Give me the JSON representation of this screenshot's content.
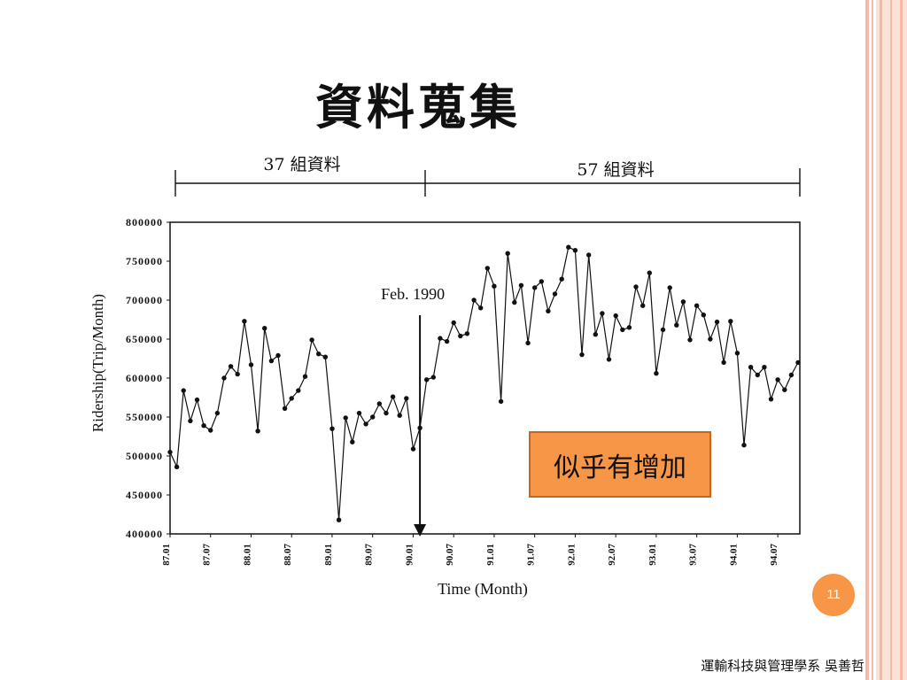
{
  "slide": {
    "title": "資料蒐集",
    "segments": [
      {
        "label": "37 組資料"
      },
      {
        "label": "57 組資料"
      }
    ],
    "callout": "似乎有增加",
    "page_number": "11",
    "footer": "運輸科技與管理學系 吳善哲",
    "colors": {
      "accent": "#f79646",
      "stripe": "#f5b9a5",
      "stripe_light": "#fbe2d7"
    }
  },
  "chart_data": {
    "type": "line",
    "title": "",
    "xlabel": "Time (Month)",
    "ylabel": "Ridership(Trip/Month)",
    "ylim": [
      400000,
      800000
    ],
    "y_ticks": [
      800000,
      750000,
      700000,
      650000,
      600000,
      550000,
      500000,
      450000,
      400000
    ],
    "x_ticks": [
      "87.01",
      "87.07",
      "88.01",
      "88.07",
      "89.01",
      "89.07",
      "90.01",
      "90.07",
      "91.01",
      "91.07",
      "92.01",
      "92.07",
      "93.01",
      "93.07",
      "94.01",
      "94.07"
    ],
    "grid": false,
    "legend": false,
    "x": [
      "87.01",
      "87.02",
      "87.03",
      "87.04",
      "87.05",
      "87.06",
      "87.07",
      "87.08",
      "87.09",
      "87.10",
      "87.11",
      "87.12",
      "88.01",
      "88.02",
      "88.03",
      "88.04",
      "88.05",
      "88.06",
      "88.07",
      "88.08",
      "88.09",
      "88.10",
      "88.11",
      "88.12",
      "89.01",
      "89.02",
      "89.03",
      "89.04",
      "89.05",
      "89.06",
      "89.07",
      "89.08",
      "89.09",
      "89.10",
      "89.11",
      "89.12",
      "90.01",
      "90.02",
      "90.03",
      "90.04",
      "90.05",
      "90.06",
      "90.07",
      "90.08",
      "90.09",
      "90.10",
      "90.11",
      "90.12",
      "91.01",
      "91.02",
      "91.03",
      "91.04",
      "91.05",
      "91.06",
      "91.07",
      "91.08",
      "91.09",
      "91.10",
      "91.11",
      "91.12",
      "92.01",
      "92.02",
      "92.03",
      "92.04",
      "92.05",
      "92.06",
      "92.07",
      "92.08",
      "92.09",
      "92.10",
      "92.11",
      "92.12",
      "93.01",
      "93.02",
      "93.03",
      "93.04",
      "93.05",
      "93.06",
      "93.07",
      "93.08",
      "93.09",
      "93.10",
      "93.11",
      "93.12",
      "94.01",
      "94.02",
      "94.03",
      "94.04",
      "94.05",
      "94.06",
      "94.07",
      "94.08",
      "94.09",
      "94.10"
    ],
    "series": [
      {
        "values": [
          505000,
          486000,
          584000,
          545000,
          572000,
          539000,
          533000,
          555000,
          600000,
          615000,
          605000,
          673000,
          617000,
          532000,
          664000,
          622000,
          629000,
          561000,
          574000,
          584000,
          602000,
          649000,
          631000,
          627000,
          535000,
          418000,
          549000,
          518000,
          555000,
          541000,
          550000,
          567000,
          555000,
          576000,
          552000,
          574000,
          509000,
          536000,
          598000,
          601000,
          651000,
          647000,
          671000,
          654000,
          657000,
          700000,
          690000,
          741000,
          718000,
          570000,
          760000,
          697000,
          719000,
          645000,
          716000,
          724000,
          686000,
          708000,
          727000,
          768000,
          764000,
          630000,
          758000,
          656000,
          683000,
          624000,
          680000,
          662000,
          665000,
          717000,
          693000,
          735000,
          606000,
          662000,
          716000,
          668000,
          698000,
          649000,
          693000,
          681000,
          650000,
          672000,
          620000,
          673000,
          632000,
          514000,
          614000,
          604000,
          614000,
          573000,
          598000,
          585000,
          604000,
          620000
        ]
      }
    ],
    "annotations": [
      {
        "text": "Feb. 1990",
        "x": "90.02",
        "type": "arrow"
      }
    ]
  }
}
